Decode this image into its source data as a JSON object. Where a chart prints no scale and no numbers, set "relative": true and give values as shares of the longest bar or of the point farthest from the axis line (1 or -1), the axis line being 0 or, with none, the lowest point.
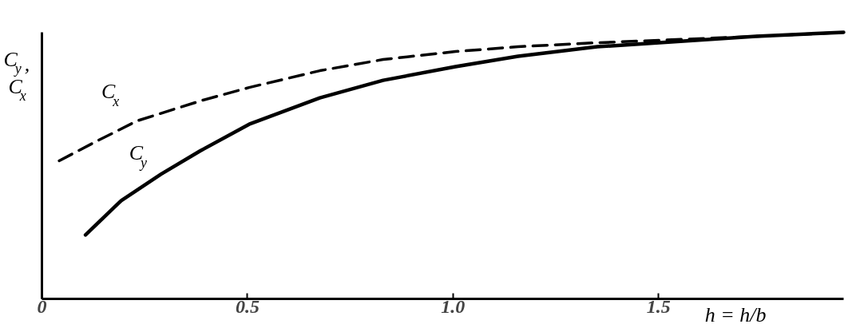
{
  "chart_data": {
    "type": "line",
    "relative": true,
    "ylabel": "C$_{y}$, C$_{x}$",
    "xlabel": "h = h/b",
    "xlim": [
      0,
      1.95
    ],
    "xticks": [
      0,
      0.5,
      {
        "value": 1,
        "label": "1.0"
      },
      1.5
    ],
    "series": [
      {
        "name": "C$_{x}$",
        "color": "#000000",
        "line_style": "dashed",
        "x": [
          0.042,
          0.135,
          0.232,
          0.386,
          0.504,
          0.676,
          0.83,
          1.006,
          1.158,
          1.351,
          1.544,
          1.737,
          1.95
        ],
        "values": [
          0.518,
          0.593,
          0.668,
          0.743,
          0.793,
          0.856,
          0.898,
          0.928,
          0.946,
          0.961,
          0.973,
          0.985,
          1.0
        ]
      },
      {
        "name": "C$_{y}$",
        "color": "#000000",
        "line_style": "solid",
        "x": [
          0.106,
          0.193,
          0.29,
          0.386,
          0.504,
          0.676,
          0.83,
          1.006,
          1.158,
          1.351,
          1.502,
          1.737,
          1.95
        ],
        "values": [
          0.24,
          0.369,
          0.468,
          0.556,
          0.655,
          0.754,
          0.82,
          0.871,
          0.91,
          0.946,
          0.961,
          0.985,
          1.0
        ]
      }
    ]
  }
}
